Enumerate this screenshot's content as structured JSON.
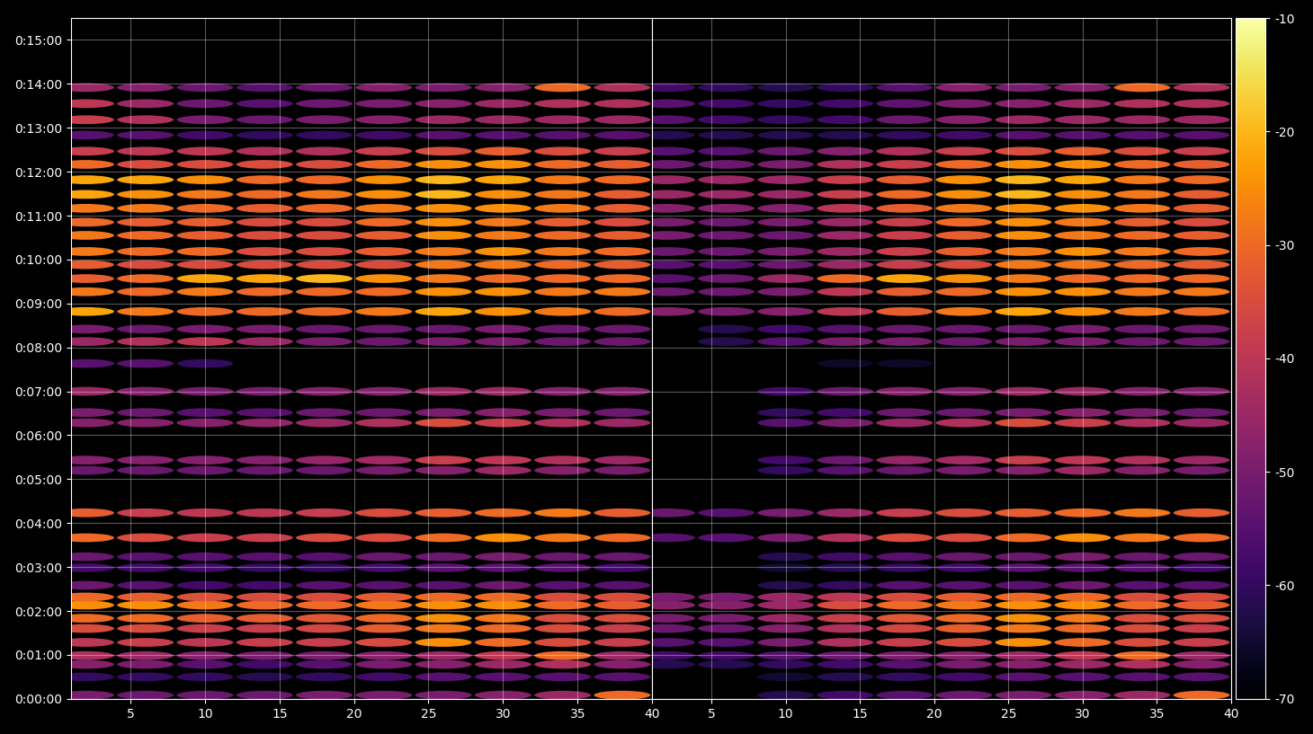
{
  "chart_data": [
    {
      "type": "heatmap",
      "x": [
        2,
        6,
        10,
        14,
        18,
        22,
        26,
        30,
        34,
        38
      ],
      "y": [
        5,
        30,
        47,
        59,
        77,
        96,
        110,
        128,
        139,
        155,
        179,
        194,
        220,
        254,
        312,
        326,
        377,
        391,
        420,
        458,
        488,
        505,
        529,
        556,
        574,
        593,
        611,
        633,
        651,
        670,
        689,
        709,
        730,
        748,
        770,
        791,
        813,
        835
      ],
      "cells": [
        [
          -50,
          -52,
          -52,
          -52,
          -50,
          -50,
          -50,
          -48,
          -45,
          -30
        ],
        [
          -60,
          -60,
          -60,
          -62,
          -60,
          -58,
          -55,
          -55,
          -55,
          -55
        ],
        [
          -48,
          -50,
          -55,
          -58,
          -55,
          -50,
          -48,
          -45,
          -42,
          -48
        ],
        [
          -42,
          -45,
          -48,
          -50,
          -50,
          -48,
          -45,
          -40,
          -30,
          -45
        ],
        [
          -40,
          -38,
          -40,
          -38,
          -38,
          -35,
          -25,
          -30,
          -35,
          -38
        ],
        [
          -35,
          -35,
          -38,
          -38,
          -36,
          -32,
          -28,
          -30,
          -35,
          -38
        ],
        [
          -30,
          -30,
          -32,
          -32,
          -33,
          -30,
          -25,
          -28,
          -35,
          -35
        ],
        [
          -25,
          -25,
          -28,
          -30,
          -30,
          -28,
          -25,
          -25,
          -30,
          -32
        ],
        [
          -30,
          -32,
          -34,
          -35,
          -35,
          -32,
          -30,
          -30,
          -35,
          -35
        ],
        [
          -52,
          -55,
          -58,
          -58,
          -55,
          -55,
          -55,
          -52,
          -55,
          -55
        ],
        [
          -58,
          -58,
          -58,
          -60,
          -60,
          -58,
          -55,
          -55,
          -55,
          -58
        ],
        [
          -52,
          -55,
          -55,
          -55,
          -55,
          -52,
          -52,
          -50,
          -52,
          -52
        ],
        [
          -30,
          -35,
          -38,
          -38,
          -35,
          -35,
          -30,
          -25,
          -28,
          -30
        ],
        [
          -32,
          -38,
          -40,
          -40,
          -38,
          -35,
          -32,
          -30,
          -28,
          -32
        ],
        [
          -52,
          -52,
          -52,
          -52,
          -52,
          -50,
          -48,
          -45,
          -48,
          -50
        ],
        [
          -48,
          -48,
          -48,
          -48,
          -46,
          -44,
          -38,
          -40,
          -42,
          -45
        ],
        [
          -48,
          -48,
          -48,
          -46,
          -45,
          -42,
          -35,
          -38,
          -42,
          -45
        ],
        [
          -50,
          -52,
          -55,
          -55,
          -52,
          -52,
          -50,
          -48,
          -50,
          -52
        ],
        [
          -45,
          -48,
          -50,
          -50,
          -48,
          -48,
          -45,
          -45,
          -48,
          -48
        ],
        [
          -55,
          -55,
          -60,
          null,
          null,
          null,
          null,
          null,
          null,
          null
        ],
        [
          -45,
          -42,
          -40,
          -45,
          -50,
          -52,
          -50,
          -50,
          -52,
          -52
        ],
        [
          -50,
          -52,
          -50,
          -50,
          -52,
          -52,
          -52,
          -50,
          -52,
          -52
        ],
        [
          -22,
          -28,
          -30,
          -30,
          -30,
          -28,
          -22,
          -25,
          -28,
          -30
        ],
        [
          -28,
          -30,
          -28,
          -30,
          -30,
          -30,
          -25,
          -25,
          -28,
          -28
        ],
        [
          -32,
          -30,
          -22,
          -22,
          -20,
          -25,
          -28,
          -30,
          -30,
          -30
        ],
        [
          -32,
          -35,
          -35,
          -35,
          -35,
          -35,
          -28,
          -28,
          -30,
          -32
        ],
        [
          -28,
          -30,
          -30,
          -35,
          -35,
          -32,
          -28,
          -25,
          -28,
          -30
        ],
        [
          -28,
          -30,
          -32,
          -35,
          -35,
          -32,
          -25,
          -28,
          -30,
          -32
        ],
        [
          -30,
          -32,
          -32,
          -35,
          -35,
          -30,
          -25,
          -28,
          -32,
          -35
        ],
        [
          -28,
          -28,
          -30,
          -32,
          -30,
          -28,
          -25,
          -25,
          -28,
          -32
        ],
        [
          -22,
          -25,
          -28,
          -30,
          -28,
          -25,
          -20,
          -25,
          -28,
          -32
        ],
        [
          -22,
          -22,
          -25,
          -30,
          -30,
          -25,
          -20,
          -22,
          -28,
          -30
        ],
        [
          -30,
          -35,
          -35,
          -35,
          -35,
          -30,
          -25,
          -25,
          -30,
          -32
        ],
        [
          -38,
          -40,
          -40,
          -42,
          -42,
          -38,
          -35,
          -32,
          -35,
          -38
        ],
        [
          -55,
          -55,
          -58,
          -60,
          -60,
          -58,
          -55,
          -55,
          -55,
          -55
        ],
        [
          -38,
          -42,
          -50,
          -52,
          -50,
          -48,
          -45,
          -45,
          -45,
          -45
        ],
        [
          -40,
          -45,
          -52,
          -55,
          -52,
          -50,
          -48,
          -45,
          -42,
          -42
        ],
        [
          -45,
          -48,
          -52,
          -55,
          -52,
          -48,
          -50,
          -48,
          -30,
          -42
        ]
      ],
      "xlim": [
        1,
        40
      ],
      "xticks": [
        5,
        10,
        15,
        20,
        25,
        30,
        35,
        40
      ],
      "ylim": [
        0,
        930
      ],
      "yticks": [
        {
          "value": 0,
          "label": "0:00:00"
        },
        {
          "value": 60,
          "label": "0:01:00"
        },
        {
          "value": 120,
          "label": "0:02:00"
        },
        {
          "value": 180,
          "label": "0:03:00"
        },
        {
          "value": 240,
          "label": "0:04:00"
        },
        {
          "value": 300,
          "label": "0:05:00"
        },
        {
          "value": 360,
          "label": "0:06:00"
        },
        {
          "value": 420,
          "label": "0:07:00"
        },
        {
          "value": 480,
          "label": "0:08:00"
        },
        {
          "value": 540,
          "label": "0:09:00"
        },
        {
          "value": 600,
          "label": "0:10:00"
        },
        {
          "value": 660,
          "label": "0:11:00"
        },
        {
          "value": 720,
          "label": "0:12:00"
        },
        {
          "value": 780,
          "label": "0:13:00"
        },
        {
          "value": 840,
          "label": "0:14:00"
        },
        {
          "value": 900,
          "label": "0:15:00"
        }
      ],
      "grid": true
    },
    {
      "type": "heatmap",
      "x": [
        2,
        6,
        10,
        14,
        18,
        22,
        26,
        30,
        34,
        38
      ],
      "y": [
        5,
        30,
        47,
        59,
        77,
        96,
        110,
        128,
        139,
        155,
        179,
        194,
        220,
        254,
        312,
        326,
        377,
        391,
        420,
        458,
        488,
        505,
        529,
        556,
        574,
        593,
        611,
        633,
        651,
        670,
        689,
        709,
        730,
        748,
        770,
        791,
        813,
        835
      ],
      "cells": [
        [
          null,
          null,
          -62,
          -58,
          -55,
          -52,
          -50,
          -48,
          -45,
          -30
        ],
        [
          null,
          null,
          -65,
          -62,
          -60,
          -58,
          -55,
          -55,
          -55,
          -55
        ],
        [
          -62,
          -62,
          -60,
          -58,
          -55,
          -50,
          -48,
          -45,
          -42,
          -48
        ],
        [
          -58,
          -58,
          -55,
          -52,
          -50,
          -48,
          -45,
          -40,
          -30,
          -45
        ],
        [
          -55,
          -55,
          -50,
          -42,
          -38,
          -35,
          -25,
          -30,
          -35,
          -38
        ],
        [
          -52,
          -52,
          -48,
          -42,
          -36,
          -32,
          -28,
          -30,
          -35,
          -38
        ],
        [
          -50,
          -50,
          -45,
          -38,
          -33,
          -30,
          -25,
          -28,
          -35,
          -35
        ],
        [
          -48,
          -48,
          -45,
          -35,
          -30,
          -28,
          -25,
          -25,
          -30,
          -32
        ],
        [
          -50,
          -50,
          -45,
          -40,
          -35,
          -32,
          -30,
          -30,
          -35,
          -35
        ],
        [
          null,
          null,
          -62,
          -60,
          -55,
          -55,
          -55,
          -52,
          -55,
          -55
        ],
        [
          null,
          null,
          -65,
          -62,
          -60,
          -58,
          -55,
          -55,
          -55,
          -58
        ],
        [
          null,
          null,
          -62,
          -58,
          -55,
          -52,
          -52,
          -50,
          -52,
          -52
        ],
        [
          -55,
          -55,
          -50,
          -42,
          -35,
          -35,
          -30,
          -25,
          -28,
          -30
        ],
        [
          -52,
          -55,
          -50,
          -45,
          -38,
          -35,
          -32,
          -30,
          -28,
          -32
        ],
        [
          null,
          null,
          -60,
          -55,
          -52,
          -50,
          -48,
          -45,
          -48,
          -50
        ],
        [
          null,
          null,
          -58,
          -52,
          -46,
          -44,
          -38,
          -40,
          -42,
          -45
        ],
        [
          null,
          null,
          -55,
          -50,
          -45,
          -42,
          -35,
          -38,
          -42,
          -45
        ],
        [
          null,
          null,
          -60,
          -58,
          -52,
          -52,
          -50,
          -48,
          -50,
          -52
        ],
        [
          null,
          null,
          -58,
          -52,
          -48,
          -48,
          -45,
          -45,
          -48,
          -48
        ],
        [
          null,
          null,
          null,
          -66,
          -66,
          null,
          null,
          null,
          null,
          null
        ],
        [
          null,
          -62,
          -55,
          -50,
          -50,
          -52,
          -50,
          -50,
          -52,
          -52
        ],
        [
          null,
          -62,
          -58,
          -55,
          -52,
          -52,
          -52,
          -50,
          -52,
          -52
        ],
        [
          -48,
          -50,
          -48,
          -40,
          -32,
          -28,
          -22,
          -25,
          -28,
          -30
        ],
        [
          -52,
          -52,
          -50,
          -40,
          -32,
          -30,
          -25,
          -25,
          -28,
          -28
        ],
        [
          -55,
          -52,
          -45,
          -30,
          -22,
          -25,
          -28,
          -30,
          -30,
          -30
        ],
        [
          -55,
          -55,
          -52,
          -45,
          -38,
          -35,
          -28,
          -28,
          -30,
          -32
        ],
        [
          -52,
          -52,
          -50,
          -45,
          -38,
          -32,
          -28,
          -25,
          -28,
          -30
        ],
        [
          -50,
          -52,
          -52,
          -45,
          -38,
          -32,
          -25,
          -28,
          -30,
          -32
        ],
        [
          -50,
          -52,
          -50,
          -45,
          -38,
          -30,
          -25,
          -28,
          -32,
          -35
        ],
        [
          -48,
          -48,
          -48,
          -40,
          -32,
          -28,
          -25,
          -25,
          -28,
          -32
        ],
        [
          -45,
          -45,
          -45,
          -38,
          -30,
          -25,
          -20,
          -25,
          -28,
          -32
        ],
        [
          -45,
          -45,
          -45,
          -38,
          -32,
          -25,
          -20,
          -22,
          -28,
          -30
        ],
        [
          -52,
          -52,
          -50,
          -42,
          -38,
          -30,
          -25,
          -25,
          -30,
          -32
        ],
        [
          -55,
          -55,
          -52,
          -48,
          -42,
          -38,
          -35,
          -32,
          -35,
          -38
        ],
        [
          -62,
          -62,
          -62,
          -62,
          -60,
          -58,
          -55,
          -55,
          -55,
          -55
        ],
        [
          -55,
          -58,
          -60,
          -58,
          -52,
          -48,
          -45,
          -45,
          -45,
          -45
        ],
        [
          -55,
          -58,
          -60,
          -58,
          -54,
          -50,
          -48,
          -45,
          -42,
          -42
        ],
        [
          -58,
          -60,
          -62,
          -60,
          -55,
          -48,
          -50,
          -48,
          -30,
          -42
        ]
      ],
      "xlim": [
        1,
        40
      ],
      "xticks": [
        5,
        10,
        15,
        20,
        25,
        30,
        35,
        40
      ],
      "ylim": [
        0,
        930
      ],
      "yticks": [
        0,
        60,
        120,
        180,
        240,
        300,
        360,
        420,
        480,
        540,
        600,
        660,
        720,
        780,
        840,
        900
      ],
      "tick_labels": "x",
      "grid": true,
      "colorbar": {
        "range": [
          -70,
          -10
        ],
        "ticks": [
          -70,
          -60,
          -50,
          -40,
          -30,
          -20,
          -10
        ]
      }
    }
  ]
}
